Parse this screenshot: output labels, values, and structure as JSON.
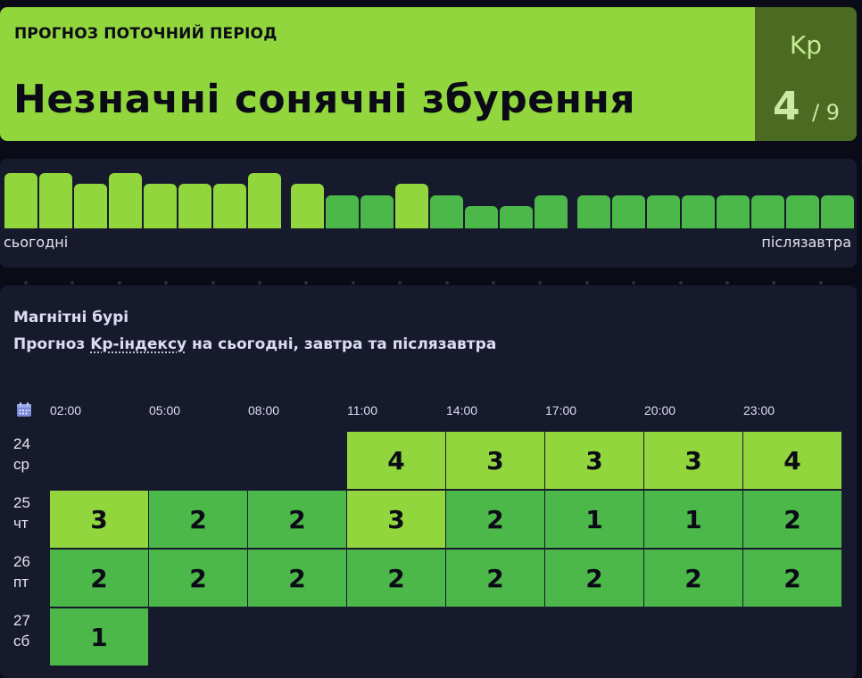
{
  "banner": {
    "subtitle": "ПРОГНОЗ ПОТОЧНИЙ ПЕРІОД",
    "title": "Незначні сонячні збурення",
    "kp_label": "Kp",
    "kp_value": "4",
    "kp_max": "/ 9",
    "accent_color": "#92d63d",
    "kp_box_color": "#4a6b21"
  },
  "bars": {
    "label_start": "сьогодні",
    "label_end": "післязавтра",
    "groups": [
      [
        4,
        4,
        3,
        4,
        3,
        3,
        3,
        4
      ],
      [
        3,
        2,
        2,
        3,
        2,
        1,
        1,
        2
      ],
      [
        2,
        2,
        2,
        2,
        2,
        2,
        2,
        2
      ]
    ]
  },
  "forecast": {
    "title": "Магнітні бурі",
    "subtitle_prefix": "Прогноз ",
    "subtitle_link": "Kp-індексу",
    "subtitle_suffix": " на сьогодні, завтра та післязавтра",
    "calendar_icon": "calendar-icon",
    "times": [
      "02:00",
      "05:00",
      "08:00",
      "11:00",
      "14:00",
      "17:00",
      "20:00",
      "23:00"
    ],
    "days": [
      {
        "date": "24",
        "weekday": "ср",
        "values": [
          null,
          null,
          null,
          4,
          3,
          3,
          3,
          4
        ]
      },
      {
        "date": "25",
        "weekday": "чт",
        "values": [
          3,
          2,
          2,
          3,
          2,
          1,
          1,
          2
        ]
      },
      {
        "date": "26",
        "weekday": "пт",
        "values": [
          2,
          2,
          2,
          2,
          2,
          2,
          2,
          2
        ]
      },
      {
        "date": "27",
        "weekday": "сб",
        "values": [
          1,
          null,
          null,
          null,
          null,
          null,
          null,
          null
        ]
      }
    ],
    "colors": {
      "moderate": "#92d63d",
      "low": "#4cb84a"
    }
  }
}
